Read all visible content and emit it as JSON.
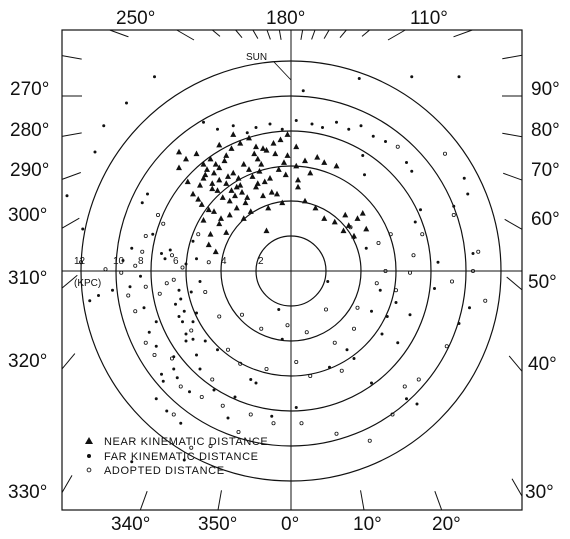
{
  "chart_data": {
    "type": "scatter",
    "coordinates": "polar map of the Galactic plane, Galactic center at origin",
    "rings_kpc": [
      2,
      4,
      6,
      8,
      10,
      12
    ],
    "ring_labels": [
      "2",
      "4",
      "6",
      "8",
      "10",
      "12"
    ],
    "unit_label": "(KPC)",
    "sun_label": "SUN",
    "sun_distance_kpc": 10,
    "left_longitude_labels": [
      "270°",
      "280°",
      "290°",
      "300°",
      "310°",
      "320°",
      "330°"
    ],
    "right_longitude_labels": [
      "90°",
      "80°",
      "70°",
      "60°",
      "50°",
      "40°",
      "30°"
    ],
    "top_longitude_labels": [
      "250°",
      "180°",
      "110°"
    ],
    "bottom_longitude_labels": [
      "340°",
      "350°",
      "0°",
      "10°",
      "20°"
    ],
    "legend": [
      {
        "marker": "triangle",
        "label": "NEAR KINEMATIC DISTANCE"
      },
      {
        "marker": "filled-dot",
        "label": "FAR KINEMATIC DISTANCE"
      },
      {
        "marker": "open-dot",
        "label": "ADOPTED DISTANCE"
      }
    ],
    "series": [
      {
        "marker": "triangle",
        "points": [
          [
            -1.0,
            7.3
          ],
          [
            -1.6,
            7.0
          ],
          [
            -2.4,
            7.6
          ],
          [
            -3.4,
            7.0
          ],
          [
            -3.8,
            6.3
          ],
          [
            -4.3,
            6.1
          ],
          [
            -4.9,
            5.5
          ],
          [
            -5.0,
            6.1
          ],
          [
            -5.0,
            5.3
          ],
          [
            -4.5,
            5.0
          ],
          [
            -4.1,
            5.2
          ],
          [
            -3.7,
            5.0
          ],
          [
            -3.4,
            4.6
          ],
          [
            -3.1,
            4.8
          ],
          [
            -2.8,
            4.5
          ],
          [
            -2.5,
            4.2
          ],
          [
            -2.9,
            4.9
          ],
          [
            -2.2,
            5.4
          ],
          [
            -1.8,
            5.7
          ],
          [
            -1.5,
            5.1
          ],
          [
            -1.2,
            5.3
          ],
          [
            -0.7,
            5.8
          ],
          [
            -0.4,
            6.2
          ],
          [
            -0.3,
            5.5
          ],
          [
            -1.1,
            4.5
          ],
          [
            -1.6,
            4.3
          ],
          [
            -2.6,
            3.9
          ],
          [
            -3.1,
            3.6
          ],
          [
            -3.5,
            3.2
          ],
          [
            -4.0,
            3.0
          ],
          [
            -4.1,
            2.7
          ],
          [
            -4.4,
            3.4
          ],
          [
            -5.1,
            3.8
          ],
          [
            -5.6,
            4.4
          ],
          [
            -5.9,
            5.1
          ],
          [
            -6.0,
            6.4
          ],
          [
            -5.4,
            6.7
          ],
          [
            -4.6,
            6.4
          ],
          [
            -4.1,
            5.9
          ],
          [
            -3.3,
            5.6
          ],
          [
            -2.7,
            6.1
          ],
          [
            -2.4,
            5.8
          ],
          [
            -1.9,
            6.4
          ],
          [
            -1.4,
            6.9
          ],
          [
            -2.0,
            7.1
          ],
          [
            -2.9,
            7.3
          ],
          [
            -3.7,
            6.6
          ],
          [
            -4.5,
            4.7
          ],
          [
            -3.9,
            4.2
          ],
          [
            -2.0,
            4.8
          ],
          [
            -0.8,
            4.4
          ],
          [
            -0.5,
            3.9
          ],
          [
            -5.2,
            4.9
          ],
          [
            -4.8,
            5.8
          ],
          [
            -3.5,
            4.0
          ],
          [
            -2.3,
            3.4
          ],
          [
            -1.3,
            3.6
          ],
          [
            -5.3,
            4.1
          ],
          [
            -4.7,
            3.5
          ],
          [
            -4.2,
            4.6
          ],
          [
            -3.6,
            5.4
          ],
          [
            -2.1,
            6.7
          ],
          [
            -1.7,
            6.1
          ],
          [
            -0.9,
            6.7
          ],
          [
            -0.6,
            7.5
          ],
          [
            -0.2,
            7.8
          ],
          [
            0.3,
            7.1
          ],
          [
            -0.2,
            6.6
          ],
          [
            0.3,
            6.0
          ],
          [
            0.4,
            5.2
          ],
          [
            0.8,
            6.3
          ],
          [
            1.5,
            6.5
          ],
          [
            1.9,
            6.2
          ],
          [
            2.6,
            6.0
          ],
          [
            0.8,
            4.0
          ],
          [
            1.4,
            3.6
          ],
          [
            1.9,
            3.0
          ],
          [
            2.5,
            2.8
          ],
          [
            3.1,
            3.2
          ],
          [
            3.3,
            2.6
          ],
          [
            3.8,
            3.0
          ],
          [
            4.1,
            3.3
          ],
          [
            4.3,
            2.4
          ],
          [
            3.6,
            2.0
          ],
          [
            3.0,
            2.3
          ],
          [
            -4.6,
            2.1
          ],
          [
            -3.7,
            2.2
          ],
          [
            -4.3,
            1.1
          ],
          [
            -4.7,
            1.5
          ],
          [
            -5.0,
            2.9
          ],
          [
            -2.7,
            3.0
          ],
          [
            -1.4,
            2.3
          ],
          [
            -6.4,
            5.9
          ],
          [
            -6.4,
            6.8
          ],
          [
            -4.1,
            7.2
          ],
          [
            -3.3,
            7.8
          ],
          [
            0.4,
            4.8
          ],
          [
            -4.4,
            5.6
          ],
          [
            -3.0,
            5.3
          ],
          [
            -1.9,
            5.0
          ],
          [
            1.1,
            5.6
          ],
          [
            -3.2,
            4.3
          ]
        ]
      },
      {
        "marker": "filled-dot",
        "points": [
          [
            -5.0,
            8.5
          ],
          [
            -4.2,
            8.1
          ],
          [
            -3.3,
            8.3
          ],
          [
            -2.5,
            7.9
          ],
          [
            -2.0,
            8.2
          ],
          [
            -1.2,
            8.4
          ],
          [
            -0.5,
            8.1
          ],
          [
            0.3,
            8.6
          ],
          [
            1.2,
            8.4
          ],
          [
            1.8,
            8.2
          ],
          [
            2.6,
            8.5
          ],
          [
            3.3,
            8.1
          ],
          [
            4.0,
            8.3
          ],
          [
            4.7,
            7.7
          ],
          [
            5.4,
            7.4
          ],
          [
            6.9,
            5.7
          ],
          [
            6.6,
            6.2
          ],
          [
            7.4,
            3.5
          ],
          [
            7.1,
            2.8
          ],
          [
            6.0,
            -1.8
          ],
          [
            5.5,
            -2.6
          ],
          [
            6.8,
            -2.5
          ],
          [
            5.2,
            -3.6
          ],
          [
            6.1,
            -4.1
          ],
          [
            3.6,
            -5.0
          ],
          [
            2.2,
            -5.5
          ],
          [
            3.2,
            -4.5
          ],
          [
            -0.5,
            -3.9
          ],
          [
            -4.2,
            -4.5
          ],
          [
            -6.0,
            -4.0
          ],
          [
            -7.3,
            -6.3
          ],
          [
            -7.7,
            -4.3
          ],
          [
            -8.4,
            -2.1
          ],
          [
            -8.6,
            -0.3
          ],
          [
            -9.2,
            -0.9
          ],
          [
            -10.2,
            -1.1
          ],
          [
            -11.0,
            -1.4
          ],
          [
            -11.5,
            -1.7
          ],
          [
            -8.5,
            3.9
          ],
          [
            -8.2,
            4.4
          ],
          [
            -7.9,
            2.1
          ],
          [
            -7.4,
            1.0
          ],
          [
            -6.4,
            -1.1
          ],
          [
            -6.3,
            -1.6
          ],
          [
            -6.1,
            -2.3
          ],
          [
            -6.2,
            -2.9
          ],
          [
            -6.6,
            -1.9
          ],
          [
            -6.4,
            -2.6
          ],
          [
            -6.0,
            -3.6
          ],
          [
            -5.6,
            -3.9
          ],
          [
            -5.4,
            -4.8
          ],
          [
            -6.7,
            -4.9
          ],
          [
            -7.2,
            0.7
          ],
          [
            -6.9,
            1.2
          ],
          [
            -5.6,
            1.7
          ],
          [
            -6.0,
            0.4
          ],
          [
            -5.4,
            0.7
          ],
          [
            -5.2,
            -0.6
          ],
          [
            -5.7,
            -1.2
          ],
          [
            -5.4,
            -2.4
          ],
          [
            -5.6,
            -2.9
          ],
          [
            -6.7,
            -5.6
          ],
          [
            -7.4,
            -5.9
          ],
          [
            -4.4,
            -6.8
          ],
          [
            -3.2,
            -7.2
          ],
          [
            -10.7,
            8.3
          ],
          [
            -11.2,
            6.8
          ],
          [
            -12.8,
            4.3
          ],
          [
            -11.9,
            2.4
          ],
          [
            -9.4,
            9.6
          ],
          [
            -7.8,
            11.1
          ],
          [
            0.7,
            10.3
          ],
          [
            3.9,
            11.0
          ],
          [
            6.9,
            11.1
          ],
          [
            9.6,
            11.1
          ],
          [
            9.9,
            5.3
          ],
          [
            9.3,
            3.7
          ],
          [
            10.1,
            4.4
          ],
          [
            10.4,
            1.0
          ],
          [
            9.6,
            -3.0
          ],
          [
            10.2,
            -2.1
          ],
          [
            8.4,
            0.5
          ],
          [
            8.2,
            -1.0
          ],
          [
            4.6,
            -6.4
          ],
          [
            6.6,
            -7.3
          ],
          [
            7.2,
            -7.6
          ],
          [
            -2.0,
            -6.4
          ],
          [
            -1.1,
            -8.3
          ],
          [
            0.3,
            -7.8
          ],
          [
            -3.6,
            -8.4
          ],
          [
            -6.1,
            -10.8
          ],
          [
            -9.1,
            -10.9
          ],
          [
            5.1,
            -1.1
          ],
          [
            4.6,
            -2.3
          ],
          [
            -9.1,
            1.3
          ],
          [
            -9.6,
            0.6
          ],
          [
            -4.9,
            -4.0
          ],
          [
            -5.2,
            -5.6
          ],
          [
            -6.5,
            -6.1
          ],
          [
            -7.7,
            -7.3
          ],
          [
            -7.1,
            -8.0
          ],
          [
            -6.3,
            -8.7
          ],
          [
            -2.3,
            -6.2
          ],
          [
            -7.7,
            -2.9
          ],
          [
            -8.1,
            -3.5
          ],
          [
            -5.8,
            -6.9
          ],
          [
            4.2,
            5.5
          ],
          [
            4.1,
            6.6
          ],
          [
            4.3,
            1.3
          ],
          [
            3.6,
            1.9
          ],
          [
            2.1,
            -0.6
          ],
          [
            -0.7,
            -2.2
          ]
        ]
      },
      {
        "marker": "open-dot",
        "points": [
          [
            6.1,
            7.1
          ],
          [
            8.8,
            6.7
          ],
          [
            9.3,
            3.2
          ],
          [
            10.7,
            1.1
          ],
          [
            10.4,
            0.0
          ],
          [
            11.1,
            -1.7
          ],
          [
            9.2,
            -0.6
          ],
          [
            8.9,
            -4.3
          ],
          [
            7.3,
            -6.2
          ],
          [
            6.5,
            -6.6
          ],
          [
            5.8,
            -8.2
          ],
          [
            4.5,
            -9.7
          ],
          [
            2.6,
            -9.3
          ],
          [
            0.6,
            -8.7
          ],
          [
            -1.0,
            -8.7
          ],
          [
            -2.3,
            -8.2
          ],
          [
            -3.9,
            -7.7
          ],
          [
            -5.1,
            -7.2
          ],
          [
            -6.3,
            -6.6
          ],
          [
            -6.8,
            -5.0
          ],
          [
            -7.8,
            -4.8
          ],
          [
            -8.3,
            -4.1
          ],
          [
            -8.9,
            -2.3
          ],
          [
            -9.3,
            -1.4
          ],
          [
            -8.3,
            -0.9
          ],
          [
            -7.1,
            -0.7
          ],
          [
            -7.5,
            -1.3
          ],
          [
            -6.7,
            -0.5
          ],
          [
            -6.2,
            0.2
          ],
          [
            -6.8,
            0.9
          ],
          [
            -7.3,
            2.7
          ],
          [
            -7.6,
            3.2
          ],
          [
            -8.3,
            2.0
          ],
          [
            -8.5,
            1.1
          ],
          [
            -8.9,
            0.3
          ],
          [
            -9.7,
            -0.1
          ],
          [
            -10.6,
            0.1
          ],
          [
            -12.0,
            0.5
          ],
          [
            -5.3,
            2.1
          ],
          [
            -4.7,
            0.5
          ],
          [
            -4.9,
            -1.2
          ],
          [
            -5.7,
            -3.4
          ],
          [
            -4.1,
            -2.6
          ],
          [
            -2.8,
            -2.5
          ],
          [
            -1.7,
            -3.3
          ],
          [
            -0.2,
            -3.1
          ],
          [
            0.9,
            -3.5
          ],
          [
            2.0,
            -2.2
          ],
          [
            2.5,
            -4.1
          ],
          [
            3.6,
            -3.3
          ],
          [
            3.8,
            -2.1
          ],
          [
            4.9,
            -0.7
          ],
          [
            5.0,
            1.6
          ],
          [
            5.7,
            2.1
          ],
          [
            5.4,
            0.0
          ],
          [
            6.0,
            -1.1
          ],
          [
            7.5,
            2.1
          ],
          [
            7.0,
            0.9
          ],
          [
            6.8,
            -0.1
          ],
          [
            3.4,
            2.5
          ],
          [
            2.9,
            -5.7
          ],
          [
            1.1,
            -6.0
          ],
          [
            0.3,
            -5.2
          ],
          [
            -1.4,
            -5.6
          ],
          [
            -2.9,
            -5.3
          ],
          [
            -3.6,
            -4.5
          ],
          [
            -4.5,
            -6.2
          ],
          [
            -3.0,
            -9.2
          ],
          [
            -4.6,
            -10.0
          ],
          [
            -5.7,
            -10.1
          ],
          [
            -6.7,
            -8.2
          ]
        ]
      }
    ]
  }
}
